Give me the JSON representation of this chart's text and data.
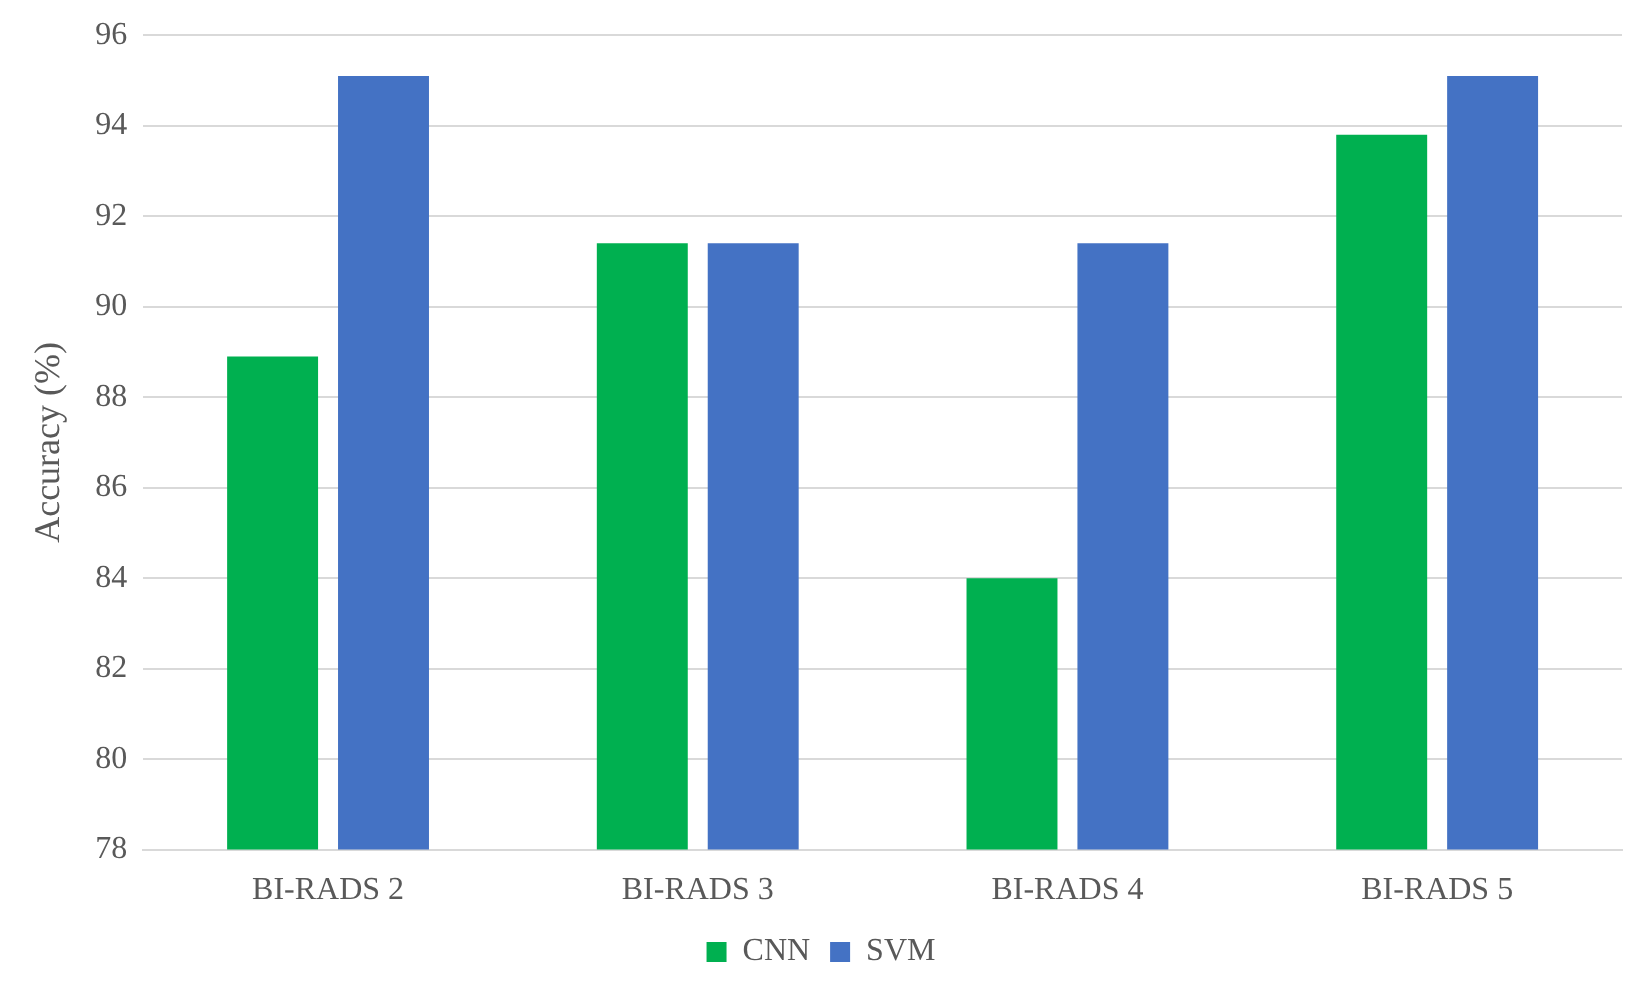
{
  "chart_data": {
    "type": "bar",
    "ylabel": "Accuracy (%)",
    "categories": [
      "BI-RADS 2",
      "BI-RADS 3",
      "BI-RADS 4",
      "BI-RADS 5"
    ],
    "series": [
      {
        "name": "CNN",
        "color": "#00b050",
        "values": [
          88.9,
          91.4,
          84.0,
          93.8
        ]
      },
      {
        "name": "SVM",
        "color": "#4472c4",
        "values": [
          95.1,
          91.4,
          91.4,
          95.1
        ]
      }
    ],
    "ylim": [
      78,
      96
    ],
    "yticks": [
      78,
      80,
      82,
      84,
      86,
      88,
      90,
      92,
      94,
      96
    ],
    "grid": "y",
    "legend": "bottom"
  }
}
